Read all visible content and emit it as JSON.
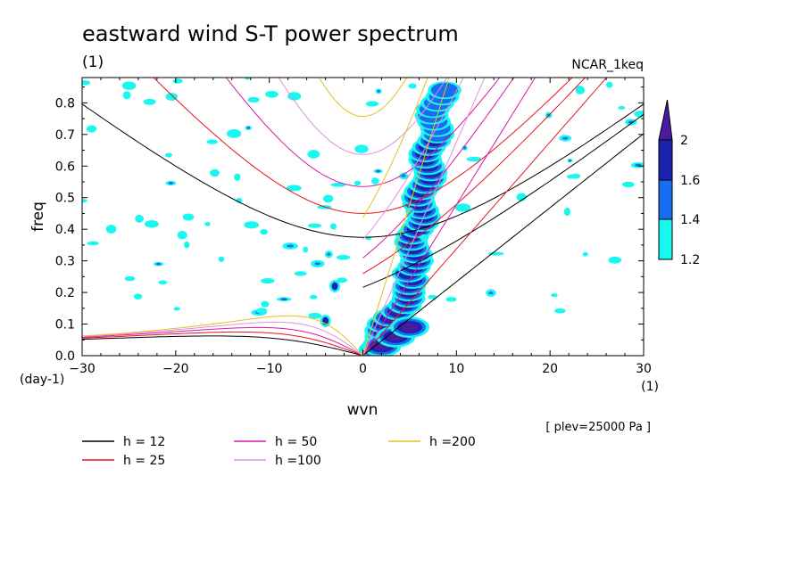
{
  "header": {
    "title": "eastward wind S-T power spectrum",
    "subtitle": "(1)",
    "model": "NCAR_1keq",
    "level_note": "[ plev=25000 Pa ]"
  },
  "colors": {
    "h12": "#000000",
    "h25": "#e8141c",
    "h50": "#d61aa8",
    "h100": "#e090e0",
    "h200": "#e6c21a",
    "shade_1_2": "#18f8f0",
    "shade_1_4": "#1a6cf0",
    "shade_1_6": "#1a24b0",
    "shade_2": "#4a1aa0"
  },
  "chart_data": {
    "type": "heatmap",
    "title": "eastward wind S-T power spectrum",
    "xlabel": "wvn",
    "ylabel": "freq",
    "x_unit_label": "(1)",
    "y_unit_label": "(day-1)",
    "xlim": [
      -30,
      30
    ],
    "ylim": [
      0,
      0.88
    ],
    "xticks": [
      -30,
      -20,
      -10,
      0,
      10,
      20,
      30
    ],
    "yticks": [
      0.0,
      0.1,
      0.2,
      0.3,
      0.4,
      0.5,
      0.6,
      0.7,
      0.8
    ],
    "xtick_labels": [
      "−30",
      "−20",
      "−10",
      "0",
      "10",
      "20",
      "30"
    ],
    "ytick_labels": [
      "0.0",
      "0.1",
      "0.2",
      "0.3",
      "0.4",
      "0.5",
      "0.6",
      "0.7",
      "0.8"
    ],
    "colorbar": {
      "levels": [
        1.2,
        1.4,
        1.6,
        2
      ],
      "labels": [
        "1.2",
        "1.4",
        "1.6",
        "2"
      ]
    },
    "dispersion_curves": [
      {
        "label": "h = 12",
        "h": 12
      },
      {
        "label": "h = 25",
        "h": 25
      },
      {
        "label": "h = 50",
        "h": 50
      },
      {
        "label": "h =100",
        "h": 100
      },
      {
        "label": "h =200",
        "h": 200
      }
    ],
    "features": [
      {
        "name": "kelvin-wave-band",
        "x_range": [
          0.5,
          9
        ],
        "freq_range": [
          0,
          0.88
        ],
        "max_level": 2
      },
      {
        "name": "low-wavenumber-peak",
        "x": 2,
        "freq": 0.04,
        "max_level": 2
      }
    ]
  }
}
